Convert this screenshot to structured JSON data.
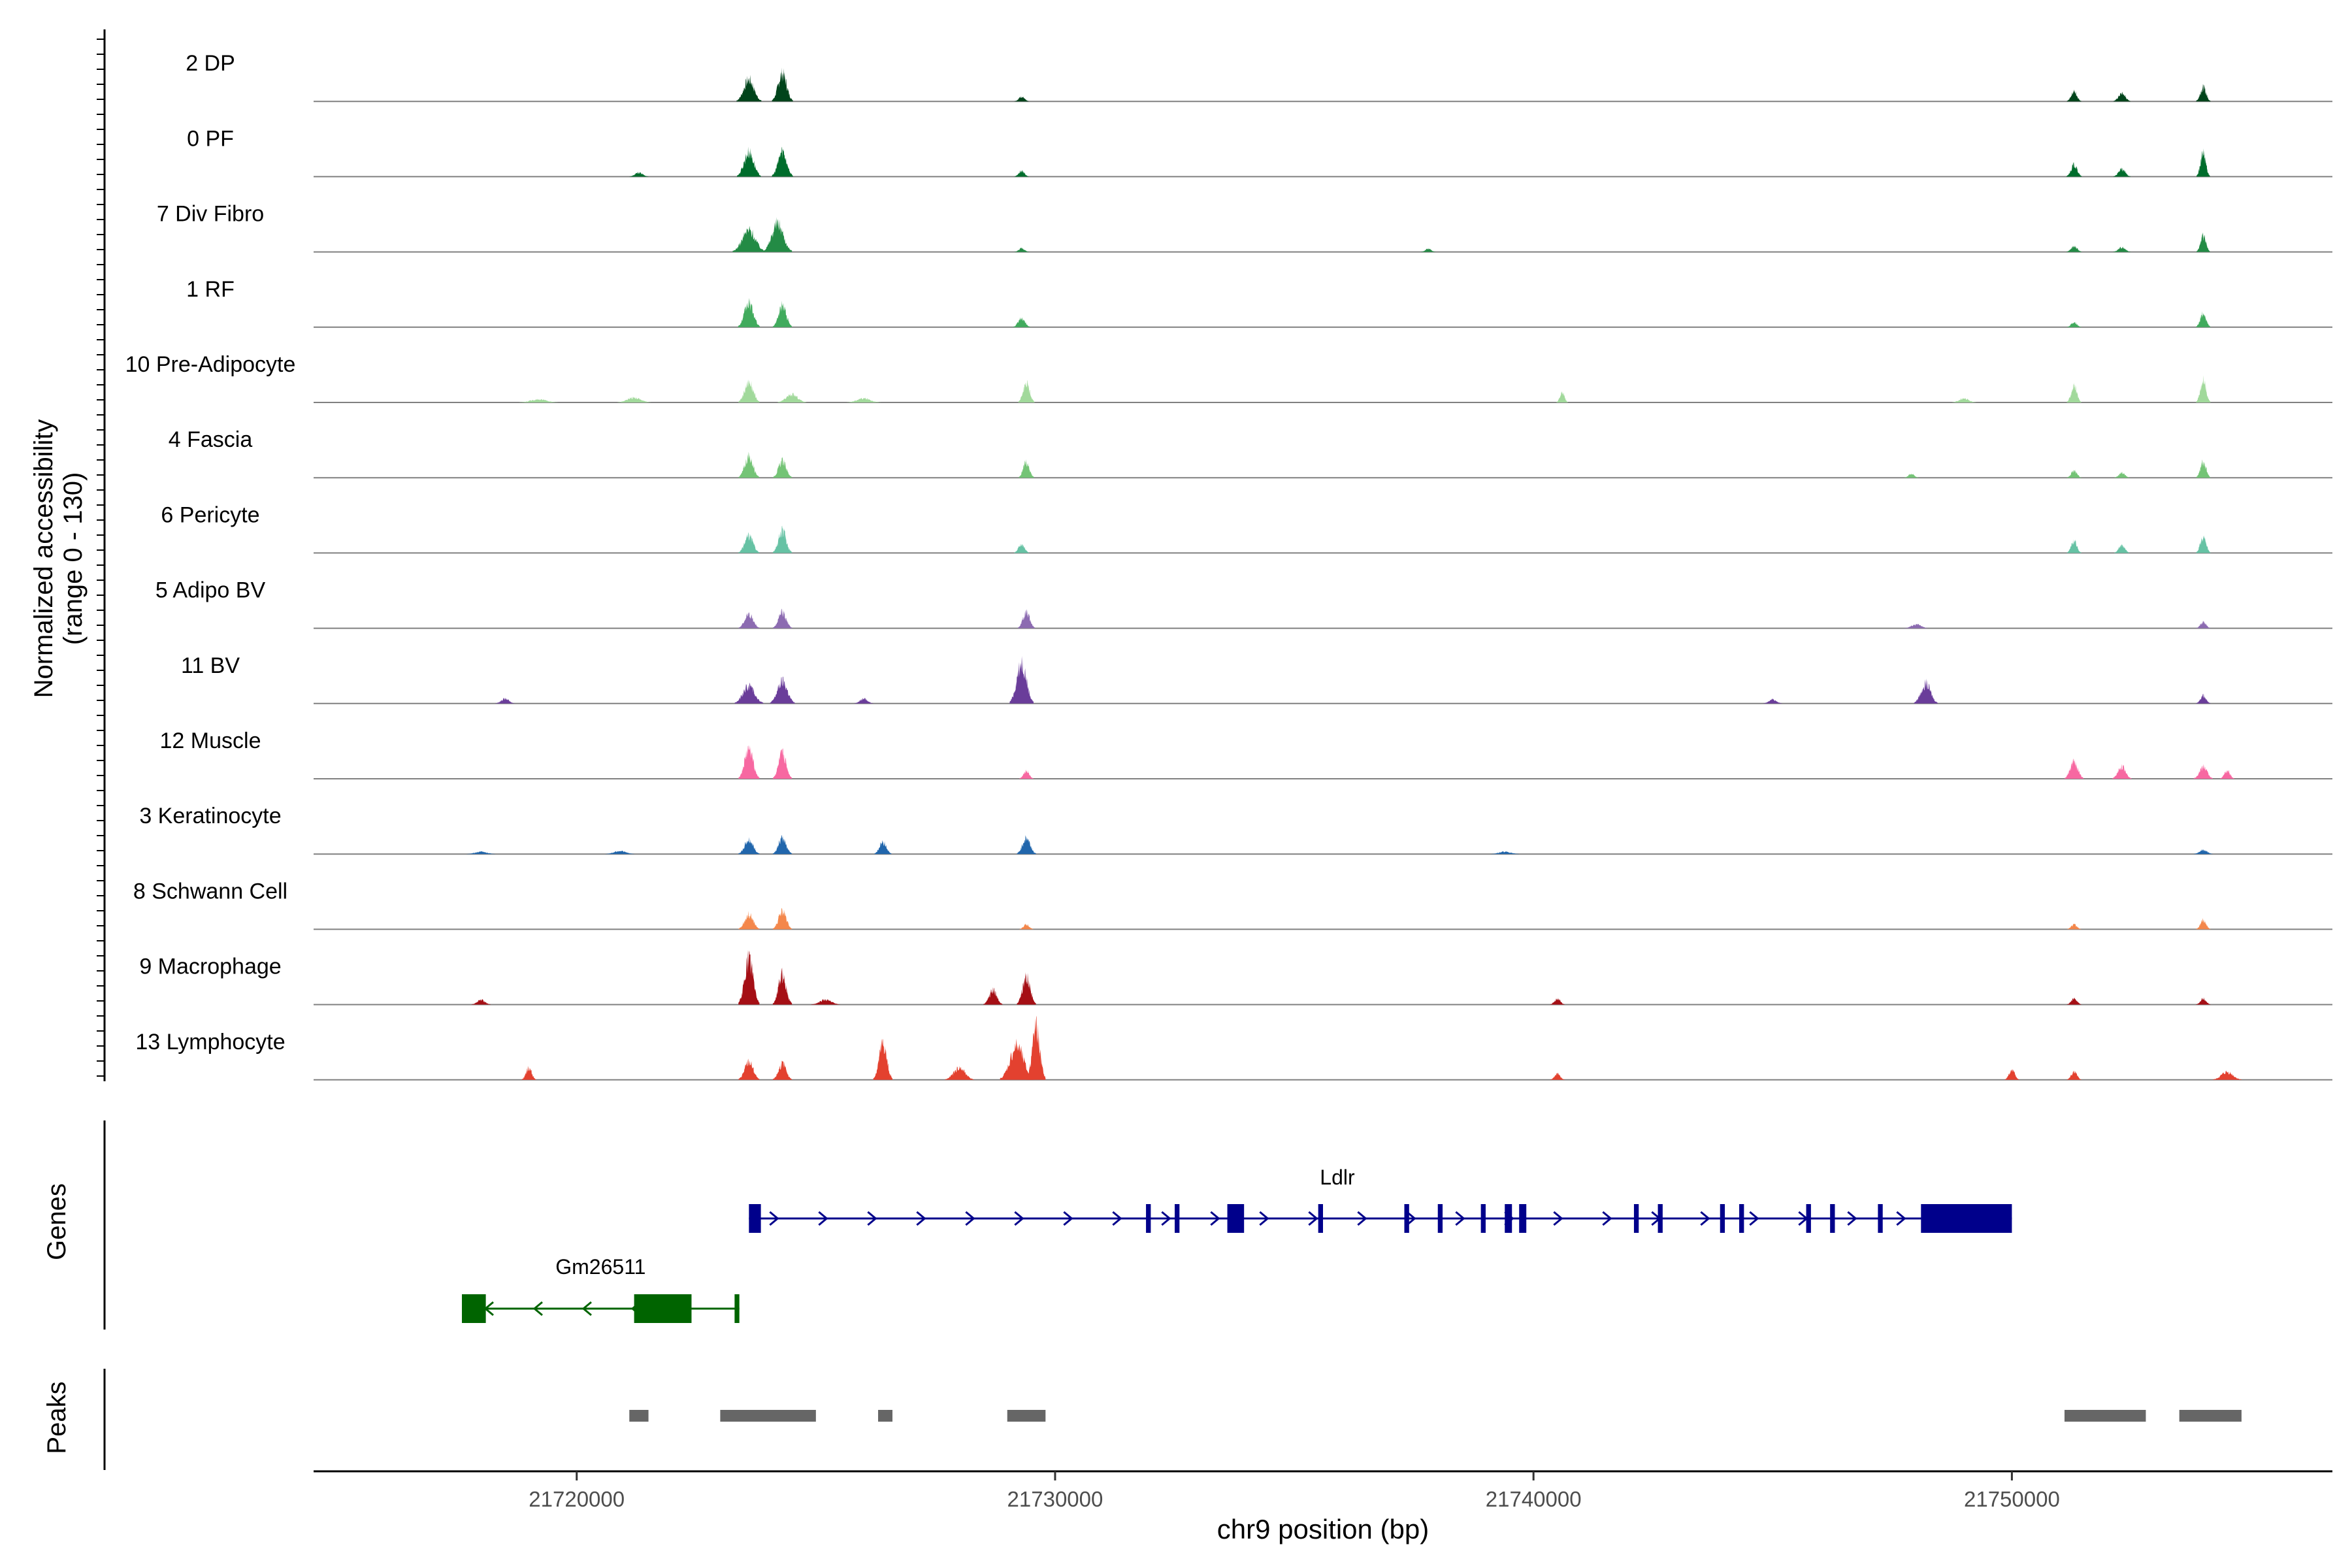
{
  "chart_data": {
    "type": "area",
    "title": "",
    "ylabel_lines": [
      "Normalized accessibility",
      "(range 0 - 130)"
    ],
    "xlabel": "chr9 position (bp)",
    "xlim": [
      21714500,
      21756700
    ],
    "ylim": [
      0,
      130
    ],
    "x_ticks": [
      21720000,
      21730000,
      21740000,
      21750000
    ],
    "x_tick_labels": [
      "21720000",
      "21730000",
      "21740000",
      "21750000"
    ],
    "track_panel_labels": [
      "Genes",
      "Peaks"
    ],
    "series": [
      {
        "name": "2 DP",
        "color": "#00441b",
        "peaks": [
          [
            21723600,
            260,
            55
          ],
          [
            21724300,
            220,
            70
          ],
          [
            21729300,
            150,
            12
          ],
          [
            21751300,
            150,
            25
          ],
          [
            21752300,
            180,
            20
          ],
          [
            21754000,
            150,
            35
          ]
        ]
      },
      {
        "name": "0 PF",
        "color": "#006d2c",
        "peaks": [
          [
            21721300,
            200,
            10
          ],
          [
            21723600,
            250,
            62
          ],
          [
            21724300,
            220,
            65
          ],
          [
            21729300,
            150,
            14
          ],
          [
            21751300,
            160,
            30
          ],
          [
            21752300,
            180,
            18
          ],
          [
            21754000,
            140,
            58
          ]
        ]
      },
      {
        "name": "7 Div Fibro",
        "color": "#238b45",
        "peaks": [
          [
            21723600,
            340,
            55
          ],
          [
            21724200,
            300,
            72
          ],
          [
            21729300,
            150,
            9
          ],
          [
            21737800,
            150,
            8
          ],
          [
            21751300,
            160,
            14
          ],
          [
            21752300,
            180,
            12
          ],
          [
            21754000,
            140,
            40
          ]
        ]
      },
      {
        "name": "1 RF",
        "color": "#41ab5d",
        "peaks": [
          [
            21723600,
            230,
            60
          ],
          [
            21724300,
            200,
            55
          ],
          [
            21729300,
            180,
            22
          ],
          [
            21751300,
            150,
            12
          ],
          [
            21754000,
            150,
            35
          ]
        ]
      },
      {
        "name": "10 Pre-Adipocyte",
        "color": "#a1d99b",
        "peaks": [
          [
            21719200,
            400,
            8
          ],
          [
            21721200,
            350,
            12
          ],
          [
            21723600,
            220,
            52
          ],
          [
            21724500,
            300,
            20
          ],
          [
            21726000,
            350,
            10
          ],
          [
            21729400,
            170,
            48
          ],
          [
            21740600,
            120,
            25
          ],
          [
            21749000,
            250,
            10
          ],
          [
            21751300,
            150,
            40
          ],
          [
            21754000,
            150,
            55
          ]
        ]
      },
      {
        "name": "4 Fascia",
        "color": "#74c476",
        "peaks": [
          [
            21723600,
            220,
            52
          ],
          [
            21724300,
            200,
            42
          ],
          [
            21729400,
            160,
            40
          ],
          [
            21747900,
            150,
            10
          ],
          [
            21751300,
            150,
            18
          ],
          [
            21752300,
            160,
            12
          ],
          [
            21754000,
            150,
            40
          ]
        ]
      },
      {
        "name": "6 Pericyte",
        "color": "#66c2a4",
        "peaks": [
          [
            21723600,
            220,
            42
          ],
          [
            21724300,
            200,
            55
          ],
          [
            21729300,
            160,
            22
          ],
          [
            21751300,
            150,
            30
          ],
          [
            21752300,
            160,
            20
          ],
          [
            21754000,
            150,
            40
          ]
        ]
      },
      {
        "name": "5 Adipo BV",
        "color": "#8c6bb1",
        "peaks": [
          [
            21723600,
            220,
            35
          ],
          [
            21724300,
            200,
            40
          ],
          [
            21729400,
            180,
            40
          ],
          [
            21748000,
            250,
            10
          ],
          [
            21754000,
            150,
            15
          ]
        ]
      },
      {
        "name": "11 BV",
        "color": "#6a3d9a",
        "peaks": [
          [
            21723600,
            300,
            45
          ],
          [
            21724300,
            260,
            55
          ],
          [
            21729300,
            250,
            105
          ],
          [
            21748200,
            250,
            50
          ],
          [
            21754000,
            150,
            20
          ],
          [
            21726000,
            200,
            12
          ],
          [
            21718500,
            200,
            12
          ],
          [
            21745000,
            200,
            10
          ]
        ]
      },
      {
        "name": "12 Muscle",
        "color": "#f768a1",
        "peaks": [
          [
            21723600,
            220,
            75
          ],
          [
            21724300,
            200,
            62
          ],
          [
            21729400,
            150,
            20
          ],
          [
            21751300,
            200,
            42
          ],
          [
            21752300,
            200,
            30
          ],
          [
            21754000,
            200,
            30
          ],
          [
            21754500,
            150,
            20
          ]
        ]
      },
      {
        "name": "3 Keratinocyte",
        "color": "#2166ac",
        "peaks": [
          [
            21723600,
            220,
            35
          ],
          [
            21724300,
            200,
            40
          ],
          [
            21726400,
            180,
            30
          ],
          [
            21729400,
            200,
            40
          ],
          [
            21720900,
            300,
            8
          ],
          [
            21718000,
            300,
            6
          ],
          [
            21739400,
            300,
            6
          ],
          [
            21754000,
            200,
            10
          ]
        ]
      },
      {
        "name": "8 Schwann Cell",
        "color": "#f4874b",
        "peaks": [
          [
            21723600,
            220,
            38
          ],
          [
            21724300,
            200,
            45
          ],
          [
            21729400,
            150,
            12
          ],
          [
            21751300,
            150,
            12
          ],
          [
            21754000,
            150,
            22
          ]
        ]
      },
      {
        "name": "9 Macrophage",
        "color": "#a50f15",
        "peaks": [
          [
            21723600,
            220,
            115
          ],
          [
            21724300,
            200,
            75
          ],
          [
            21728700,
            200,
            35
          ],
          [
            21729400,
            200,
            70
          ],
          [
            21718000,
            200,
            12
          ],
          [
            21740500,
            150,
            15
          ],
          [
            21751300,
            150,
            15
          ],
          [
            21754000,
            150,
            15
          ],
          [
            21725200,
            300,
            12
          ]
        ]
      },
      {
        "name": "13 Lymphocyte",
        "color": "#e3412f",
        "peaks": [
          [
            21719000,
            150,
            30
          ],
          [
            21723600,
            220,
            45
          ],
          [
            21724300,
            200,
            40
          ],
          [
            21726400,
            200,
            90
          ],
          [
            21729200,
            350,
            85
          ],
          [
            21729600,
            200,
            130
          ],
          [
            21728000,
            300,
            30
          ],
          [
            21740500,
            150,
            15
          ],
          [
            21750000,
            150,
            25
          ],
          [
            21751300,
            150,
            20
          ],
          [
            21754500,
            300,
            20
          ]
        ]
      }
    ],
    "genes": [
      {
        "name": "Ldlr",
        "strand": "+",
        "start": 21723600,
        "end": 21750000,
        "color": "#00008b",
        "exons": [
          [
            21723600,
            21723850
          ],
          [
            21731900,
            21732000
          ],
          [
            21732500,
            21732600
          ],
          [
            21733600,
            21733950
          ],
          [
            21735500,
            21735600
          ],
          [
            21737300,
            21737400
          ],
          [
            21738000,
            21738100
          ],
          [
            21738900,
            21739000
          ],
          [
            21739400,
            21739550
          ],
          [
            21739700,
            21739850
          ],
          [
            21742100,
            21742200
          ],
          [
            21742600,
            21742700
          ],
          [
            21743900,
            21744000
          ],
          [
            21744300,
            21744400
          ],
          [
            21745700,
            21745800
          ],
          [
            21746200,
            21746300
          ],
          [
            21747200,
            21747300
          ],
          [
            21748100,
            21750000
          ]
        ]
      },
      {
        "name": "Gm26511",
        "strand": "-",
        "start": 21717600,
        "end": 21723400,
        "color": "#006400",
        "exons": [
          [
            21717600,
            21718100
          ],
          [
            21721200,
            21722400
          ],
          [
            21723300,
            21723400
          ]
        ]
      }
    ],
    "peaks_track": [
      [
        21721100,
        21721500
      ],
      [
        21723000,
        21725000
      ],
      [
        21726300,
        21726600
      ],
      [
        21729000,
        21729800
      ],
      [
        21751100,
        21752800
      ],
      [
        21753500,
        21754800
      ]
    ]
  }
}
